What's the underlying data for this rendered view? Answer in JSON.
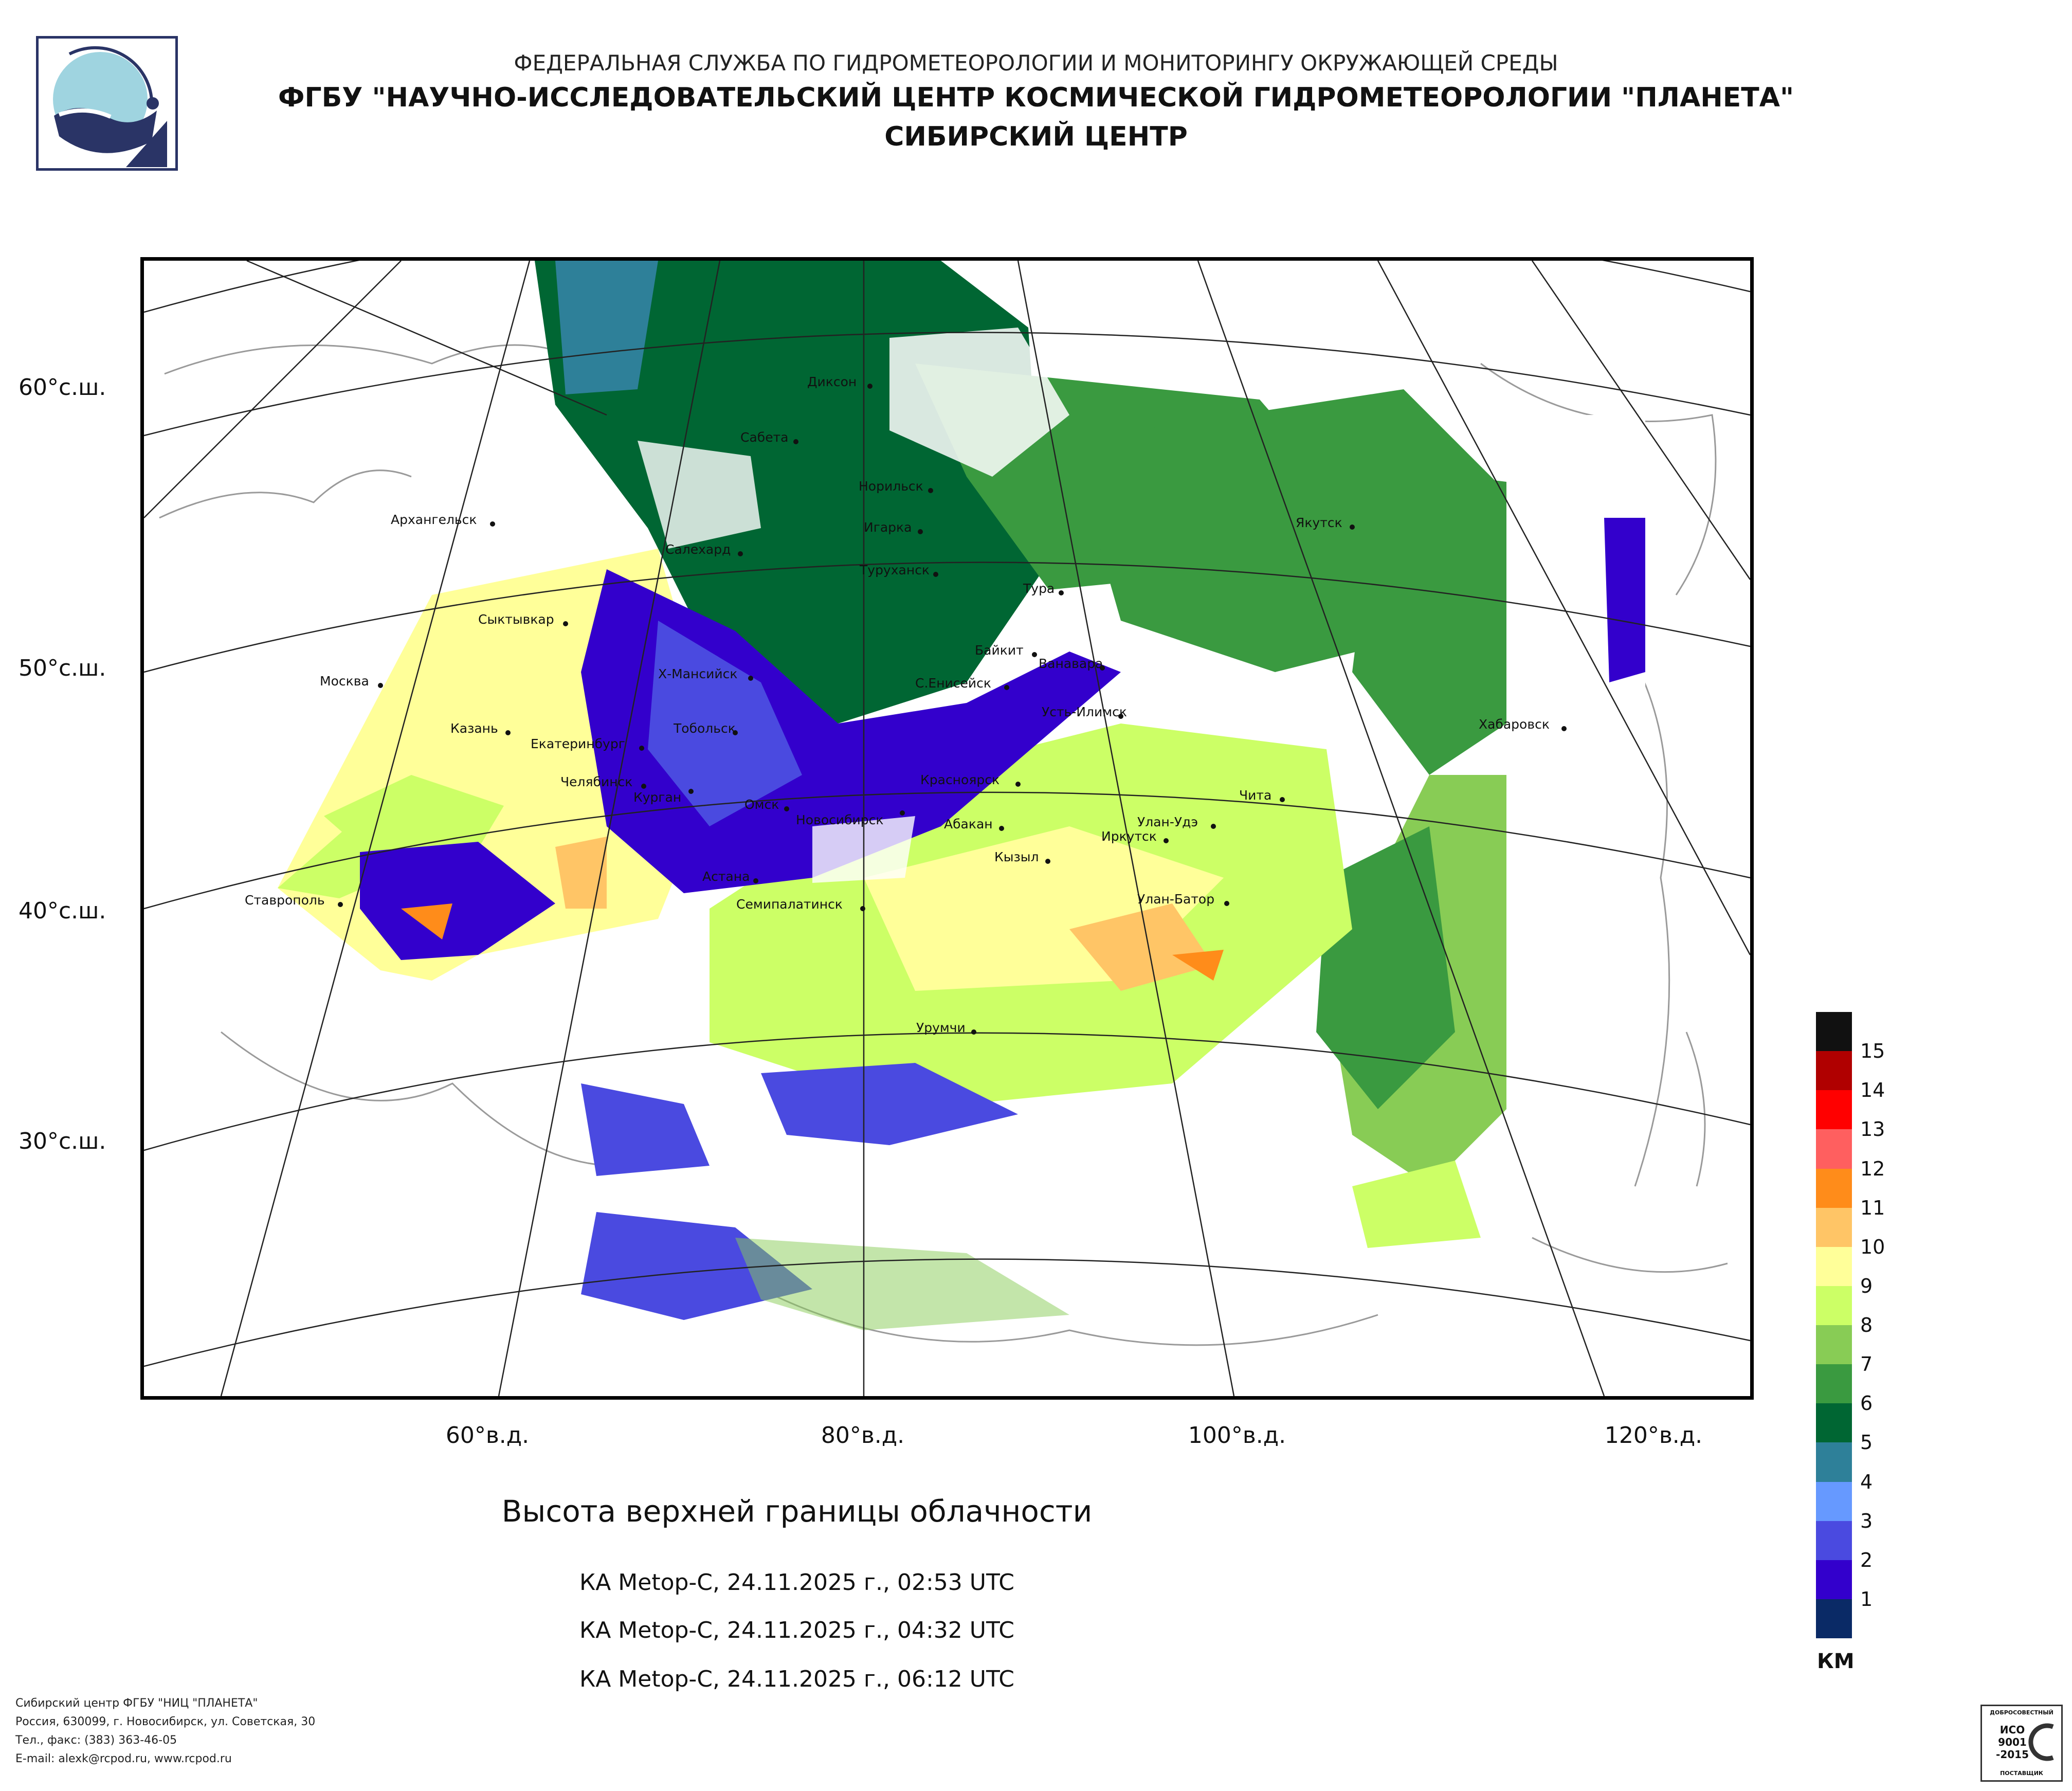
{
  "header": {
    "line1": "ФЕДЕРАЛЬНАЯ СЛУЖБА ПО ГИДРОМЕТЕОРОЛОГИИ И МОНИТОРИНГУ ОКРУЖАЮЩЕЙ СРЕДЫ",
    "line2": "ФГБУ \"НАУЧНО-ИССЛЕДОВАТЕЛЬСКИЙ ЦЕНТР КОСМИЧЕСКОЙ ГИДРОМЕТЕОРОЛОГИИ \"ПЛАНЕТА\"",
    "line3": "СИБИРСКИЙ ЦЕНТР"
  },
  "map": {
    "lat_labels": [
      "60°с.ш.",
      "50°с.ш.",
      "40°с.ш.",
      "30°с.ш."
    ],
    "lon_labels": [
      "60°в.д.",
      "80°в.д.",
      "100°в.д.",
      "120°в.д."
    ],
    "cities": [
      {
        "name": "Диксон"
      },
      {
        "name": "Сабета"
      },
      {
        "name": "Норильск"
      },
      {
        "name": "Игарка"
      },
      {
        "name": "Архангельск"
      },
      {
        "name": "Салехард"
      },
      {
        "name": "Туруханск"
      },
      {
        "name": "Якутск"
      },
      {
        "name": "Тура"
      },
      {
        "name": "Сыктывкар"
      },
      {
        "name": "Байкит"
      },
      {
        "name": "Ванавара"
      },
      {
        "name": "Москва"
      },
      {
        "name": "Х-Мансийск"
      },
      {
        "name": "С.Енисейск"
      },
      {
        "name": "Усть-Илимск"
      },
      {
        "name": "Казань"
      },
      {
        "name": "Тобольск"
      },
      {
        "name": "Хабаровск"
      },
      {
        "name": "Екатеринбург"
      },
      {
        "name": "Красноярск"
      },
      {
        "name": "Челябинск"
      },
      {
        "name": "Курган"
      },
      {
        "name": "Чита"
      },
      {
        "name": "Омск"
      },
      {
        "name": "Новосибирск"
      },
      {
        "name": "Абакан"
      },
      {
        "name": "Улан-Удэ"
      },
      {
        "name": "Иркутск"
      },
      {
        "name": "Кызыл"
      },
      {
        "name": "Астана"
      },
      {
        "name": "Ставрополь"
      },
      {
        "name": "Улан-Батор"
      },
      {
        "name": "Семипалатинск"
      },
      {
        "name": "Урумчи"
      }
    ]
  },
  "title": "Высота верхней границы облачности",
  "passes": [
    "КА Metop-C, 24.11.2025 г., 02:53 UTC",
    "КА Metop-C, 24.11.2025 г., 04:32 UTC",
    "КА Metop-C, 24.11.2025 г., 06:12 UTC"
  ],
  "legend": {
    "unit": "КМ",
    "labels": [
      "15",
      "14",
      "13",
      "12",
      "11",
      "10",
      "9",
      "8",
      "7",
      "6",
      "5",
      "4",
      "3",
      "2",
      "1"
    ],
    "colors": [
      "#111111",
      "#b00000",
      "#ff0000",
      "#ff5f5f",
      "#ff8c1a",
      "#ffc566",
      "#ffff99",
      "#ccff66",
      "#88cc55",
      "#3a9a40",
      "#006633",
      "#2e8099",
      "#6699ff",
      "#4a4ae0",
      "#3300cc",
      "#0a2a66"
    ]
  },
  "footer": {
    "line1": "Сибирский центр ФГБУ \"НИЦ \"ПЛАНЕТА\"",
    "line2": "Россия, 630099, г. Новосибирск, ул. Советская, 30",
    "line3": "Тел., факс: (383) 363-46-05",
    "line4": "E-mail: alexk@rcpod.ru, www.rcpod.ru"
  },
  "cert": {
    "top": "ДОБРОСОВЕСТНЫЙ",
    "iso": "ИСО",
    "num": "9001",
    "year": "-2015",
    "bottom": "ПОСТАВЩИК"
  }
}
